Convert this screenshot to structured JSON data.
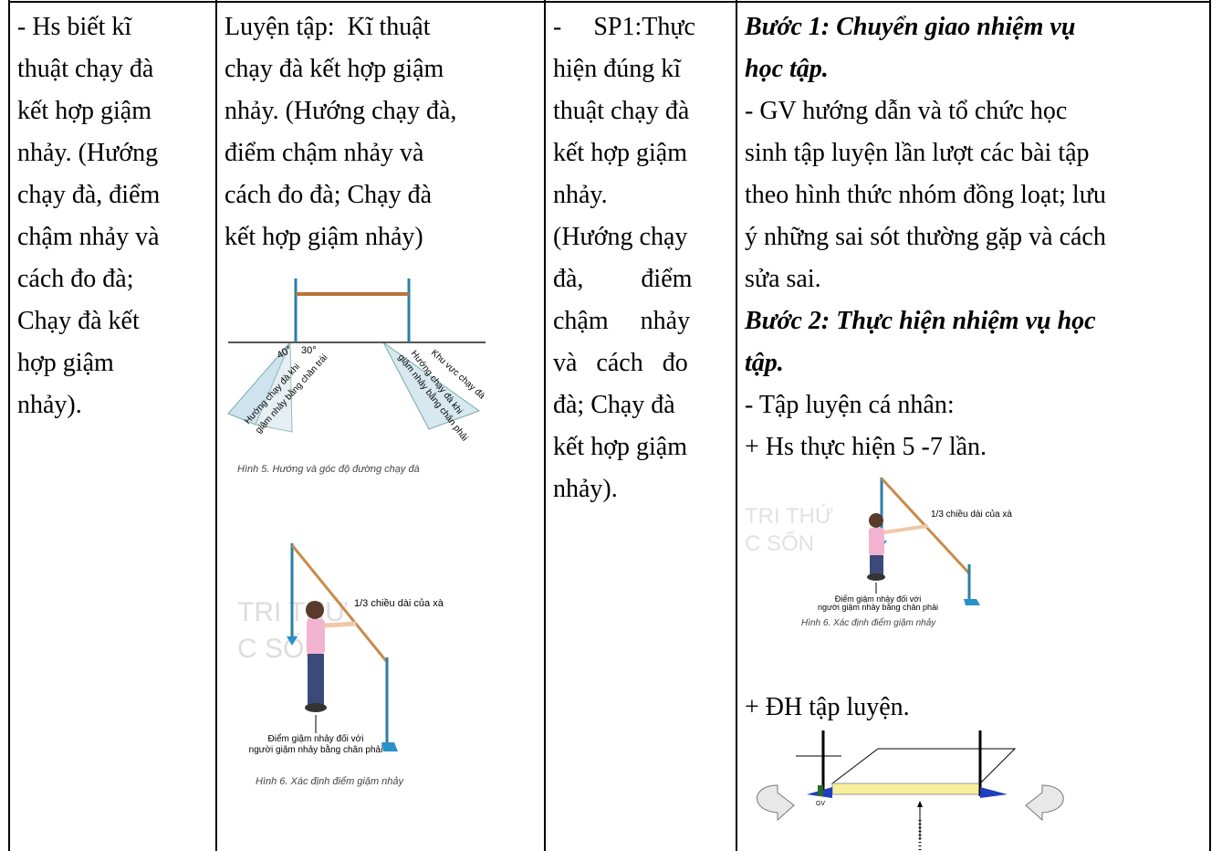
{
  "table": {
    "cells": [
      {
        "lines": [
          "- Hs biết kĩ",
          "thuật chạy đà",
          "kết hợp giậm",
          "nhảy. (Hướng",
          "chạy đà, điểm",
          "chậm nhảy và",
          "cách đo đà;",
          "Chạy đà kết",
          "hợp giậm",
          "nhảy)."
        ]
      },
      {
        "lines": [
          "Luyện tập:  Kĩ thuật",
          "chạy đà kết hợp giậm",
          "nhảy. (Hướng chạy đà,",
          "điểm chậm nhảy và",
          "cách đo đà; Chạy đà",
          "kết hợp giậm nhảy)"
        ]
      },
      {
        "lines": [
          "-     SP1:Thực",
          "hiện đúng kĩ",
          "thuật chạy đà",
          "kết hợp giậm",
          "nhảy.",
          "(Hướng chạy",
          "đà,         điểm",
          "chậm     nhảy",
          "và   cách   đo",
          "đà; Chạy đà",
          "kết hợp giậm",
          "nhảy)."
        ]
      },
      {
        "lines": [
          {
            "text": "Bước 1: Chuyển giao nhiệm vụ",
            "emphasis": true
          },
          {
            "text": "học tập.",
            "emphasis": true
          },
          {
            "text": "- GV hướng dẫn và tổ chức học"
          },
          {
            "text": "sinh tập luyện lần lượt các bài tập"
          },
          {
            "text": "theo hình thức nhóm đồng loạt; lưu"
          },
          {
            "text": "ý những sai sót thường gặp và cách"
          },
          {
            "text": "sửa sai."
          },
          {
            "text": "Bước 2: Thực hiện nhiệm vụ học",
            "emphasis": true
          },
          {
            "text": "tập.",
            "emphasis": true
          },
          {
            "text": "- Tập luyện cá nhân:"
          },
          {
            "text": "+ Hs thực hiện 5 -7 lần."
          }
        ],
        "after_figure": "+ ĐH tập luyện."
      }
    ]
  },
  "figures": {
    "run_up": {
      "angle_left": "40°",
      "angle_right": "30°",
      "left_label": [
        "Hướng chạy đà khi",
        "giậm nhảy bằng chân trái"
      ],
      "right_label": [
        "Hướng chạy đà khi",
        "giậm nhảy bằng chân phải"
      ],
      "zone_label": "Khu vực chạy đà",
      "caption": "Hình 5. Hướng và góc độ đường chạy đà"
    },
    "takeoff_a": {
      "watermark": [
        "TRI THỨ",
        "C SỐN"
      ],
      "bar_label": "1/3 chiều dài của xà",
      "point_label": [
        "Điểm giậm nhảy đối với",
        "người giậm nhảy bằng chân phải"
      ],
      "caption": "Hình 6. Xác định điểm giậm nhảy"
    },
    "takeoff_b": {
      "watermark": [
        "TRI THỨ",
        "C SỐN"
      ],
      "bar_label": "1/3 chiều dài của xà",
      "point_label": [
        "Điểm giậm nhảy đối với",
        "người giậm nhảy bằng chân phải"
      ],
      "caption": "Hình 6. Xác định điểm giậm nhảy"
    },
    "formation": {
      "teacher": "GV"
    }
  }
}
